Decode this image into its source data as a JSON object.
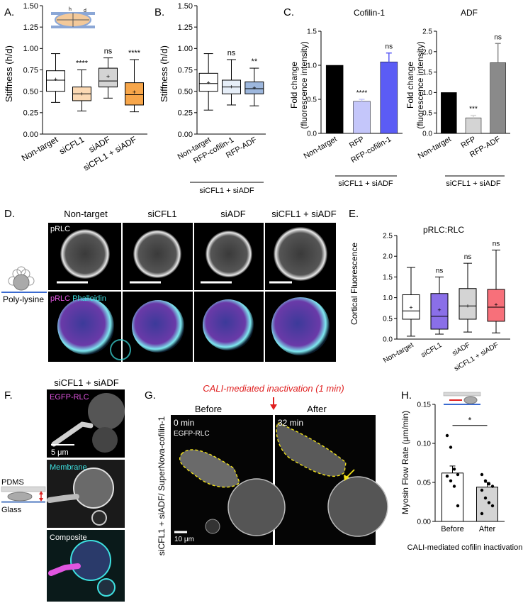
{
  "colors": {
    "white": "#ffffff",
    "light_orange": "#fbd9b4",
    "gray": "#d4d4d4",
    "orange": "#f7a64a",
    "light_blue": "#e6eef8",
    "blue": "#9db7dd",
    "black": "#000000",
    "lavender": "#c4c6fa",
    "periwinkle": "#5b5cf5",
    "mid_gray": "#8a8a8a",
    "purple": "#8a6fe8",
    "red_box": "#f7707a",
    "magenta": "#e055e0",
    "cyan": "#3ee0e0",
    "red_text": "#e02020",
    "yellow": "#f2e21a"
  },
  "panelA": {
    "label": "A.",
    "ylabel": "Stiffness (h/d)",
    "inset_labels": [
      "h",
      "d"
    ],
    "chart_data": {
      "type": "box",
      "ylim": [
        0,
        1.5
      ],
      "yticks": [
        "0.00",
        "0.25",
        "0.50",
        "0.75",
        "1.00",
        "1.25",
        "1.50"
      ],
      "categories": [
        "Non-target",
        "siCFL1",
        "siADF",
        "siCFL1 + siADF"
      ],
      "boxes": [
        {
          "min": 0.37,
          "q1": 0.5,
          "median": 0.63,
          "q3": 0.74,
          "max": 0.94,
          "mean": 0.64,
          "color": "#ffffff",
          "sig": ""
        },
        {
          "min": 0.27,
          "q1": 0.39,
          "median": 0.47,
          "q3": 0.55,
          "max": 0.75,
          "mean": 0.47,
          "color": "#fbd9b4",
          "sig": "****"
        },
        {
          "min": 0.42,
          "q1": 0.55,
          "median": 0.62,
          "q3": 0.77,
          "max": 0.89,
          "mean": 0.67,
          "color": "#d4d4d4",
          "sig": "ns"
        },
        {
          "min": 0.26,
          "q1": 0.34,
          "median": 0.46,
          "q3": 0.6,
          "max": 0.87,
          "mean": 0.49,
          "color": "#f7a64a",
          "sig": "****"
        }
      ]
    }
  },
  "panelB": {
    "label": "B.",
    "ylabel": "Stiffness (h/d)",
    "group_label": "siCFL1 + siADF",
    "chart_data": {
      "type": "box",
      "ylim": [
        0,
        1.5
      ],
      "yticks": [
        "0.00",
        "0.25",
        "0.50",
        "0.75",
        "1.00",
        "1.25",
        "1.50"
      ],
      "categories": [
        "Non-target",
        "RFP-cofilin-1",
        "RFP-ADF"
      ],
      "boxes": [
        {
          "min": 0.28,
          "q1": 0.5,
          "median": 0.59,
          "q3": 0.71,
          "max": 0.94,
          "mean": 0.6,
          "color": "#ffffff",
          "sig": ""
        },
        {
          "min": 0.34,
          "q1": 0.47,
          "median": 0.55,
          "q3": 0.63,
          "max": 0.87,
          "mean": 0.55,
          "color": "#e6eef8",
          "sig": "ns"
        },
        {
          "min": 0.33,
          "q1": 0.47,
          "median": 0.53,
          "q3": 0.61,
          "max": 0.77,
          "mean": 0.54,
          "color": "#9db7dd",
          "sig": "**"
        }
      ]
    }
  },
  "panelC": {
    "label": "C.",
    "ylabel_line1": "Fold change",
    "ylabel_line2": "(fluorescence intensity)",
    "group_label": "siCFL1 + siADF",
    "cofilin": {
      "title": "Cofilin-1",
      "chart_data": {
        "type": "bar",
        "ylim": [
          0,
          1.5
        ],
        "yticks": [
          "0.0",
          "0.5",
          "1.0",
          "1.5"
        ],
        "categories": [
          "Non-target",
          "RFP",
          "RFP-cofilin-1"
        ],
        "values": [
          1.0,
          0.47,
          1.05
        ],
        "errors": [
          0,
          0.03,
          0.13
        ],
        "colors": [
          "#000000",
          "#c4c6fa",
          "#5b5cf5"
        ],
        "sig": [
          "",
          "****",
          "ns"
        ]
      }
    },
    "adf": {
      "title": "ADF",
      "chart_data": {
        "type": "bar",
        "ylim": [
          0,
          2.5
        ],
        "yticks": [
          "0.0",
          "0.5",
          "1.0",
          "1.5",
          "2.0",
          "2.5"
        ],
        "categories": [
          "Non-target",
          "RFP",
          "RFP-ADF"
        ],
        "values": [
          1.0,
          0.38,
          1.73
        ],
        "errors": [
          0,
          0.06,
          0.47
        ],
        "colors": [
          "#000000",
          "#d4d4d4",
          "#8a8a8a"
        ],
        "sig": [
          "",
          "***",
          "ns"
        ]
      }
    }
  },
  "panelD": {
    "label": "D.",
    "columns": [
      "Non-target",
      "siCFL1",
      "siADF",
      "siCFL1 + siADF"
    ],
    "channel_top": "pRLC",
    "channel_bottom_1": "pRLC",
    "channel_bottom_2": "Phalloidin",
    "substrate_label": "Poly-lysine"
  },
  "panelE": {
    "label": "E.",
    "title": "pRLC:RLC",
    "ylabel": "Cortical Fluorescence",
    "chart_data": {
      "type": "box",
      "ylim": [
        0,
        2.5
      ],
      "yticks": [
        "0.0",
        "0.5",
        "1.0",
        "1.5",
        "2.0",
        "2.5"
      ],
      "categories": [
        "Non-target",
        "siCFL1",
        "siADF",
        "siCFL1 + siADF"
      ],
      "boxes": [
        {
          "min": 0.07,
          "q1": 0.48,
          "median": 0.68,
          "q3": 1.07,
          "max": 1.73,
          "mean": 0.76,
          "color": "#ffffff",
          "sig": ""
        },
        {
          "min": 0.12,
          "q1": 0.24,
          "median": 0.55,
          "q3": 1.1,
          "max": 1.5,
          "mean": 0.7,
          "color": "#8a6fe8",
          "sig": "ns"
        },
        {
          "min": 0.17,
          "q1": 0.48,
          "median": 0.8,
          "q3": 1.22,
          "max": 1.83,
          "mean": 0.8,
          "color": "#d4d4d4",
          "sig": "ns"
        },
        {
          "min": 0.15,
          "q1": 0.43,
          "median": 0.77,
          "q3": 1.2,
          "max": 2.15,
          "mean": 0.83,
          "color": "#f7707a",
          "sig": "ns"
        }
      ]
    }
  },
  "panelF": {
    "label": "F.",
    "title": "siCFL1 + siADF",
    "img1": "EGFP-RLC",
    "scale": "5 μm",
    "img2": "Membrane",
    "img3": "Composite",
    "pdms": "PDMS",
    "glass": "Glass"
  },
  "panelG": {
    "label": "G.",
    "header": "CALI-mediated inactivation (1 min)",
    "before": "Before",
    "after": "After",
    "t0": "0 min",
    "t1": "32 min",
    "channel": "EGFP-RLC",
    "scale": "10 μm",
    "side_label": "siCFL1 + siADF/ SuperNova-cofilin-1"
  },
  "panelH": {
    "label": "H.",
    "ylabel": "Myosin Flow Rate (μm/min)",
    "xlabel": "CALI-mediated cofilin inactivation",
    "sig": "*",
    "chart_data": {
      "type": "bar",
      "ylim": [
        0,
        0.15
      ],
      "yticks": [
        "0.00",
        "0.05",
        "0.10",
        "0.15"
      ],
      "categories": [
        "Before",
        "After"
      ],
      "values": [
        0.062,
        0.044
      ],
      "errors": [
        0.009,
        0.006
      ],
      "colors": [
        "#ffffff",
        "#d4d4d4"
      ],
      "points": [
        [
          0.11,
          0.095,
          0.067,
          0.06,
          0.058,
          0.052,
          0.045,
          0.02
        ],
        [
          0.06,
          0.052,
          0.048,
          0.045,
          0.04,
          0.03,
          0.024,
          0.02,
          0.01
        ]
      ]
    }
  }
}
